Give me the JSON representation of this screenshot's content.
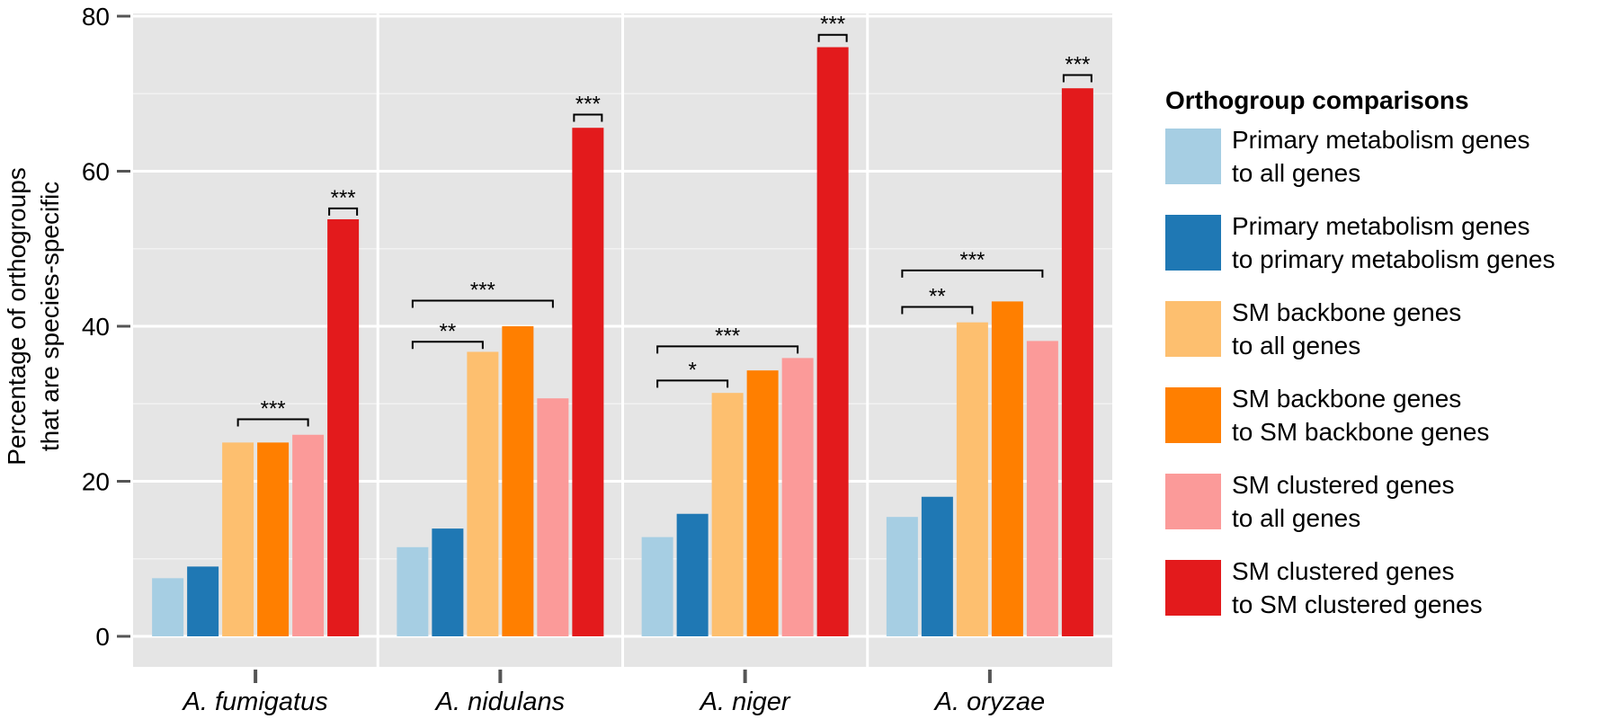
{
  "chart_data": {
    "type": "bar",
    "ylabel_lines": [
      "Percentage of orthogroups",
      "that are species-specific"
    ],
    "xlabel": "",
    "ylim": [
      0,
      80
    ],
    "yticks": [
      0,
      20,
      40,
      60,
      80
    ],
    "categories": [
      "A. fumigatus",
      "A. nidulans",
      "A. niger",
      "A. oryzae"
    ],
    "legend_title": "Orthogroup comparisons",
    "legend_placement": "right",
    "grid": true,
    "series": [
      {
        "name_lines": [
          "Primary metabolism genes",
          "to all genes"
        ],
        "color": "#a6cee3",
        "values": [
          7.5,
          11.5,
          12.8,
          15.4
        ]
      },
      {
        "name_lines": [
          "Primary metabolism genes",
          "to primary metabolism genes"
        ],
        "color": "#1f78b4",
        "values": [
          9.0,
          13.9,
          15.8,
          18.0
        ]
      },
      {
        "name_lines": [
          "SM backbone genes",
          "to all genes"
        ],
        "color": "#fdbf6f",
        "values": [
          25.0,
          36.7,
          31.4,
          40.5
        ]
      },
      {
        "name_lines": [
          "SM backbone genes",
          "to SM backbone genes"
        ],
        "color": "#ff7f00",
        "values": [
          25.0,
          40.0,
          34.3,
          43.2
        ]
      },
      {
        "name_lines": [
          "SM clustered genes",
          "to all genes"
        ],
        "color": "#fb9a99",
        "values": [
          26.0,
          30.7,
          35.9,
          38.1
        ]
      },
      {
        "name_lines": [
          "SM clustered genes",
          "to SM clustered genes"
        ],
        "color": "#e31a1c",
        "values": [
          53.8,
          65.6,
          76.0,
          70.7
        ]
      }
    ],
    "significance": [
      {
        "category": 0,
        "from": 2,
        "to": 4,
        "y": 28.0,
        "label": "***"
      },
      {
        "category": 0,
        "from": 5,
        "to": 5,
        "y": 55.2,
        "label": "***"
      },
      {
        "category": 1,
        "from": 0,
        "to": 2,
        "y": 38.0,
        "label": "**"
      },
      {
        "category": 1,
        "from": 0,
        "to": 4,
        "y": 43.3,
        "label": "***"
      },
      {
        "category": 1,
        "from": 5,
        "to": 5,
        "y": 67.3,
        "label": "***"
      },
      {
        "category": 2,
        "from": 0,
        "to": 2,
        "y": 33.0,
        "label": "*"
      },
      {
        "category": 2,
        "from": 0,
        "to": 4,
        "y": 37.4,
        "label": "***"
      },
      {
        "category": 2,
        "from": 5,
        "to": 5,
        "y": 77.6,
        "label": "***"
      },
      {
        "category": 3,
        "from": 0,
        "to": 2,
        "y": 42.5,
        "label": "**"
      },
      {
        "category": 3,
        "from": 0,
        "to": 4,
        "y": 47.2,
        "label": "***"
      },
      {
        "category": 3,
        "from": 5,
        "to": 5,
        "y": 72.4,
        "label": "***"
      }
    ]
  }
}
